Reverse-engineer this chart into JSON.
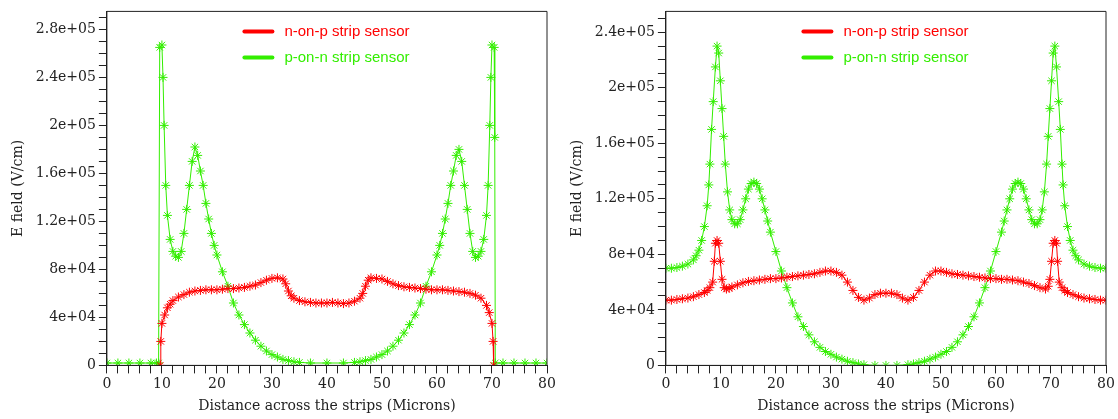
{
  "chart_data": [
    {
      "type": "line",
      "xlabel": "Distance across the strips (Microns)",
      "ylabel": "E field (V/cm)",
      "xlim": [
        0,
        80
      ],
      "ylim": [
        0,
        295000
      ],
      "xticks": [
        0,
        {
          "value": 2,
          "label": null
        },
        {
          "value": 4,
          "label": null
        },
        {
          "value": 6,
          "label": null
        },
        {
          "value": 8,
          "label": null
        },
        10,
        {
          "value": 12,
          "label": null
        },
        {
          "value": 14,
          "label": null
        },
        {
          "value": 16,
          "label": null
        },
        {
          "value": 18,
          "label": null
        },
        20,
        {
          "value": 22,
          "label": null
        },
        {
          "value": 24,
          "label": null
        },
        {
          "value": 26,
          "label": null
        },
        {
          "value": 28,
          "label": null
        },
        30,
        {
          "value": 32,
          "label": null
        },
        {
          "value": 34,
          "label": null
        },
        {
          "value": 36,
          "label": null
        },
        {
          "value": 38,
          "label": null
        },
        40,
        {
          "value": 42,
          "label": null
        },
        {
          "value": 44,
          "label": null
        },
        {
          "value": 46,
          "label": null
        },
        {
          "value": 48,
          "label": null
        },
        50,
        {
          "value": 52,
          "label": null
        },
        {
          "value": 54,
          "label": null
        },
        {
          "value": 56,
          "label": null
        },
        {
          "value": 58,
          "label": null
        },
        60,
        {
          "value": 62,
          "label": null
        },
        {
          "value": 64,
          "label": null
        },
        {
          "value": 66,
          "label": null
        },
        {
          "value": 68,
          "label": null
        },
        70,
        {
          "value": 72,
          "label": null
        },
        {
          "value": 74,
          "label": null
        },
        {
          "value": 76,
          "label": null
        },
        {
          "value": 78,
          "label": null
        },
        80
      ],
      "yticks": [
        0,
        {
          "value": 10000,
          "label": null
        },
        {
          "value": 20000,
          "label": null
        },
        {
          "value": 30000,
          "label": null
        },
        {
          "value": 40000,
          "label": "4e+04"
        },
        {
          "value": 50000,
          "label": null
        },
        {
          "value": 60000,
          "label": null
        },
        {
          "value": 70000,
          "label": null
        },
        {
          "value": 80000,
          "label": "8e+04"
        },
        {
          "value": 90000,
          "label": null
        },
        {
          "value": 100000,
          "label": null
        },
        {
          "value": 110000,
          "label": null
        },
        {
          "value": 120000,
          "label": "1.2e+05"
        },
        {
          "value": 130000,
          "label": null
        },
        {
          "value": 140000,
          "label": null
        },
        {
          "value": 150000,
          "label": null
        },
        {
          "value": 160000,
          "label": "1.6e+05"
        },
        {
          "value": 170000,
          "label": null
        },
        {
          "value": 180000,
          "label": null
        },
        {
          "value": 190000,
          "label": null
        },
        {
          "value": 200000,
          "label": "2e+05"
        },
        {
          "value": 210000,
          "label": null
        },
        {
          "value": 220000,
          "label": null
        },
        {
          "value": 230000,
          "label": null
        },
        {
          "value": 240000,
          "label": "2.4e+05"
        },
        {
          "value": 250000,
          "label": null
        },
        {
          "value": 260000,
          "label": null
        },
        {
          "value": 270000,
          "label": null
        },
        {
          "value": 280000,
          "label": "2.8e+05"
        },
        {
          "value": 290000,
          "label": null
        }
      ],
      "grid": false,
      "legend": "top",
      "marker": "cross",
      "line_style": "solid",
      "series": [
        {
          "name": "n-on-p strip sensor",
          "color": "#ff0000",
          "x": [
            9.7,
            9.8,
            10,
            10.5,
            11,
            11.5,
            12,
            13,
            14,
            15,
            16,
            17,
            18,
            19,
            20,
            21,
            22,
            23,
            24,
            25,
            26,
            27,
            28,
            29,
            30,
            31,
            32,
            32.5,
            33,
            33.5,
            34,
            35,
            36,
            37,
            38,
            39,
            40,
            41,
            42,
            43,
            44,
            45,
            46,
            46.5,
            47,
            47.5,
            48,
            49,
            50,
            51,
            52,
            53,
            54,
            55,
            56,
            57,
            58,
            59,
            60,
            61,
            62,
            63,
            64,
            65,
            66,
            67,
            68,
            69,
            69.5,
            70,
            70.2,
            70.3
          ],
          "values": [
            0,
            20000,
            35000,
            42000,
            48000,
            51000,
            54000,
            57000,
            59000,
            61000,
            62000,
            62500,
            63000,
            63000,
            63000,
            63500,
            64000,
            64000,
            64500,
            65000,
            66000,
            67000,
            69000,
            71000,
            72500,
            73000,
            72000,
            68000,
            62000,
            58000,
            56000,
            54000,
            53000,
            52500,
            52000,
            52000,
            52000,
            52500,
            52000,
            51500,
            52000,
            53500,
            56000,
            60000,
            66000,
            71000,
            73000,
            72500,
            72000,
            70000,
            68000,
            66500,
            65500,
            65000,
            64500,
            64000,
            63500,
            63000,
            63000,
            63000,
            62500,
            62000,
            61500,
            61000,
            60000,
            58500,
            56000,
            50000,
            44000,
            35000,
            20000,
            0
          ]
        },
        {
          "name": "p-on-n strip sensor",
          "color": "#33ee00",
          "x": [
            0,
            2,
            4,
            6,
            8,
            9,
            9.4,
            9.6,
            10,
            10.2,
            10.4,
            10.7,
            11,
            11.5,
            12,
            12.5,
            13,
            13.5,
            14,
            14.5,
            15,
            15.5,
            16,
            16.5,
            17,
            17.5,
            18,
            18.5,
            19,
            19.5,
            20,
            21,
            22,
            23,
            24,
            25,
            26,
            27,
            28,
            29,
            30,
            31,
            32,
            33,
            34,
            35,
            37,
            40,
            43,
            45,
            46,
            47,
            48,
            49,
            50,
            51,
            52,
            53,
            54,
            55,
            56,
            57,
            58,
            59,
            60,
            60.5,
            61,
            61.5,
            62,
            62.5,
            63,
            63.5,
            64,
            64.5,
            65,
            65.5,
            66,
            66.5,
            67,
            67.5,
            68,
            68.5,
            69,
            69.3,
            69.6,
            69.8,
            70,
            70.4,
            70.5,
            70.6,
            72,
            74,
            76,
            78,
            80
          ],
          "values": [
            2000,
            2000,
            2000,
            2000,
            2000,
            2000,
            2000,
            265000,
            267000,
            240000,
            200000,
            150000,
            125000,
            105000,
            95000,
            91000,
            90000,
            95000,
            110000,
            130000,
            150000,
            170000,
            182000,
            175000,
            162000,
            150000,
            135000,
            122000,
            110000,
            100000,
            92000,
            78000,
            66000,
            52000,
            42000,
            34000,
            27000,
            21000,
            16000,
            12000,
            9000,
            7000,
            5000,
            4000,
            3000,
            2500,
            2000,
            2000,
            2000,
            2500,
            3000,
            4000,
            5000,
            7000,
            9000,
            12000,
            16000,
            21000,
            27000,
            34000,
            42000,
            52000,
            66000,
            78000,
            92000,
            100000,
            110000,
            122000,
            135000,
            150000,
            162000,
            175000,
            180000,
            170000,
            150000,
            130000,
            110000,
            95000,
            90000,
            91000,
            95000,
            105000,
            125000,
            150000,
            200000,
            240000,
            267000,
            265000,
            190000,
            2000,
            2000,
            2000,
            2000,
            2000,
            2000
          ]
        }
      ]
    },
    {
      "type": "line",
      "xlabel": "Distance across the strips (Microns)",
      "ylabel": "E field (V/cm)",
      "xlim": [
        0,
        80
      ],
      "ylim": [
        0,
        255000
      ],
      "xticks": [
        0,
        {
          "value": 2,
          "label": null
        },
        {
          "value": 4,
          "label": null
        },
        {
          "value": 6,
          "label": null
        },
        {
          "value": 8,
          "label": null
        },
        10,
        {
          "value": 12,
          "label": null
        },
        {
          "value": 14,
          "label": null
        },
        {
          "value": 16,
          "label": null
        },
        {
          "value": 18,
          "label": null
        },
        20,
        {
          "value": 22,
          "label": null
        },
        {
          "value": 24,
          "label": null
        },
        {
          "value": 26,
          "label": null
        },
        {
          "value": 28,
          "label": null
        },
        30,
        {
          "value": 32,
          "label": null
        },
        {
          "value": 34,
          "label": null
        },
        {
          "value": 36,
          "label": null
        },
        {
          "value": 38,
          "label": null
        },
        40,
        {
          "value": 42,
          "label": null
        },
        {
          "value": 44,
          "label": null
        },
        {
          "value": 46,
          "label": null
        },
        {
          "value": 48,
          "label": null
        },
        50,
        {
          "value": 52,
          "label": null
        },
        {
          "value": 54,
          "label": null
        },
        {
          "value": 56,
          "label": null
        },
        {
          "value": 58,
          "label": null
        },
        60,
        {
          "value": 62,
          "label": null
        },
        {
          "value": 64,
          "label": null
        },
        {
          "value": 66,
          "label": null
        },
        {
          "value": 68,
          "label": null
        },
        70,
        {
          "value": 72,
          "label": null
        },
        {
          "value": 74,
          "label": null
        },
        {
          "value": 76,
          "label": null
        },
        {
          "value": 78,
          "label": null
        },
        80
      ],
      "yticks": [
        0,
        {
          "value": 10000,
          "label": null
        },
        {
          "value": 20000,
          "label": null
        },
        {
          "value": 30000,
          "label": null
        },
        {
          "value": 40000,
          "label": "4e+04"
        },
        {
          "value": 50000,
          "label": null
        },
        {
          "value": 60000,
          "label": null
        },
        {
          "value": 70000,
          "label": null
        },
        {
          "value": 80000,
          "label": "8e+04"
        },
        {
          "value": 90000,
          "label": null
        },
        {
          "value": 100000,
          "label": null
        },
        {
          "value": 110000,
          "label": null
        },
        {
          "value": 120000,
          "label": "1.2e+05"
        },
        {
          "value": 130000,
          "label": null
        },
        {
          "value": 140000,
          "label": null
        },
        {
          "value": 150000,
          "label": null
        },
        {
          "value": 160000,
          "label": "1.6e+05"
        },
        {
          "value": 170000,
          "label": null
        },
        {
          "value": 180000,
          "label": null
        },
        {
          "value": 190000,
          "label": null
        },
        {
          "value": 200000,
          "label": "2e+05"
        },
        {
          "value": 210000,
          "label": null
        },
        {
          "value": 220000,
          "label": null
        },
        {
          "value": 230000,
          "label": null
        },
        {
          "value": 240000,
          "label": "2.4e+05"
        },
        {
          "value": 250000,
          "label": null
        }
      ],
      "grid": false,
      "legend": "top",
      "marker": "cross",
      "line_style": "solid",
      "series": [
        {
          "name": "n-on-p strip sensor",
          "color": "#ff0000",
          "x": [
            0,
            1,
            2,
            3,
            4,
            5,
            6,
            7,
            7.5,
            8,
            8.5,
            8.8,
            9,
            9.3,
            9.6,
            9.9,
            10.2,
            10.6,
            11,
            11.5,
            12,
            13,
            14,
            15,
            16,
            17,
            18,
            19,
            20,
            21,
            22,
            23,
            24,
            25,
            26,
            27,
            28,
            29,
            30,
            31,
            32,
            33,
            34,
            35,
            36,
            37,
            38,
            39,
            40,
            41,
            42,
            43,
            44,
            45,
            46,
            47,
            48,
            49,
            50,
            51,
            52,
            53,
            54,
            55,
            56,
            57,
            58,
            59,
            60,
            61,
            62,
            63,
            64,
            65,
            66,
            67,
            68,
            69,
            69.5,
            69.8,
            70.1,
            70.4,
            70.7,
            71,
            71.2,
            71.5,
            72,
            72.5,
            73,
            74,
            75,
            76,
            77,
            78,
            79,
            80
          ],
          "values": [
            47000,
            47000,
            47500,
            48000,
            48500,
            49500,
            51000,
            52500,
            54000,
            56000,
            60000,
            75000,
            88000,
            90000,
            88000,
            75000,
            62000,
            56000,
            55000,
            55500,
            56500,
            58000,
            59500,
            60500,
            61000,
            61500,
            62000,
            62500,
            62500,
            63000,
            63500,
            64000,
            64500,
            65000,
            65500,
            66000,
            67000,
            68000,
            68000,
            67000,
            65000,
            60000,
            54000,
            49000,
            47000,
            48500,
            51000,
            52000,
            52000,
            52000,
            51000,
            48500,
            47000,
            49000,
            54000,
            60000,
            65000,
            68000,
            68000,
            67000,
            66000,
            65500,
            65000,
            64500,
            64000,
            63500,
            63000,
            62500,
            62500,
            62000,
            62000,
            61500,
            61000,
            60000,
            59000,
            57500,
            56000,
            55000,
            57000,
            62000,
            75000,
            88000,
            90000,
            88000,
            75000,
            60000,
            56000,
            54000,
            52500,
            51000,
            49500,
            48500,
            48000,
            47500,
            47000,
            47000
          ]
        },
        {
          "name": "p-on-n strip sensor",
          "color": "#33ee00",
          "x": [
            0,
            1,
            2,
            3,
            4,
            5,
            5.5,
            6,
            6.5,
            7,
            7.5,
            7.8,
            8,
            8.3,
            8.6,
            9,
            9.3,
            9.6,
            9.9,
            10.2,
            10.5,
            10.8,
            11.2,
            11.6,
            12,
            12.5,
            13,
            13.5,
            14,
            14.5,
            15,
            15.5,
            16,
            16.5,
            17,
            17.5,
            18,
            18.5,
            19,
            20,
            21,
            22,
            23,
            24,
            25,
            26,
            27,
            28,
            29,
            30,
            31,
            32,
            33,
            34,
            35,
            36,
            38,
            40,
            42,
            44,
            45,
            46,
            47,
            48,
            49,
            50,
            51,
            52,
            53,
            54,
            55,
            56,
            57,
            58,
            59,
            60,
            61,
            61.5,
            62,
            62.5,
            63,
            63.5,
            64,
            64.5,
            65,
            65.5,
            66,
            66.5,
            67,
            67.5,
            68,
            68.4,
            68.8,
            69.2,
            69.5,
            69.8,
            70.1,
            70.4,
            70.7,
            71,
            71.4,
            71.7,
            72,
            72.2,
            72.5,
            73,
            73.5,
            74,
            74.5,
            75,
            76,
            77,
            78,
            79,
            80
          ],
          "values": [
            70000,
            70000,
            70500,
            71500,
            73000,
            76000,
            79000,
            83000,
            90000,
            100000,
            115000,
            130000,
            145000,
            170000,
            190000,
            215000,
            230000,
            225000,
            205000,
            185000,
            165000,
            145000,
            125000,
            112000,
            105000,
            102000,
            102000,
            105000,
            112000,
            120000,
            127000,
            131000,
            132000,
            131000,
            127000,
            120000,
            112000,
            104000,
            96000,
            82000,
            68000,
            56000,
            45000,
            35000,
            28000,
            22000,
            17000,
            13000,
            10000,
            8000,
            6000,
            4500,
            3000,
            2000,
            1000,
            500,
            0,
            0,
            0,
            500,
            1000,
            2000,
            3000,
            4500,
            6000,
            8000,
            10000,
            13000,
            17000,
            22000,
            28000,
            35000,
            45000,
            56000,
            68000,
            82000,
            96000,
            104000,
            112000,
            120000,
            127000,
            131000,
            132000,
            131000,
            127000,
            120000,
            112000,
            105000,
            102000,
            102000,
            105000,
            112000,
            125000,
            145000,
            165000,
            185000,
            205000,
            225000,
            230000,
            215000,
            190000,
            170000,
            145000,
            130000,
            115000,
            100000,
            90000,
            83000,
            79000,
            76000,
            73000,
            71500,
            70500,
            70000,
            70000
          ]
        }
      ]
    }
  ]
}
